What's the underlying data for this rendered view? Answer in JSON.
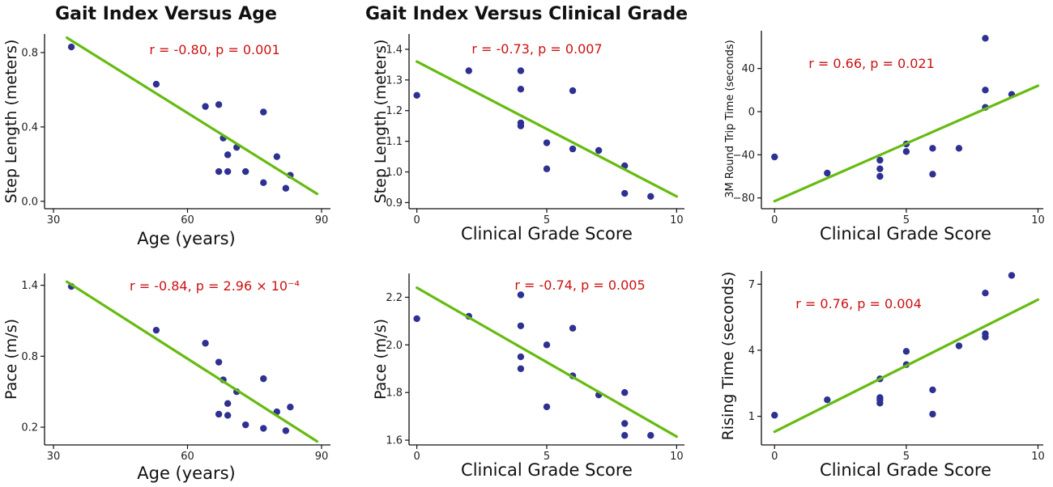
{
  "headings": {
    "left": "Gait Index Versus Age",
    "middle": "Gait Index Versus Clinical Grade"
  },
  "colors": {
    "point": "#2e3192",
    "fit": "#66bb11",
    "annotation": "#cc1111",
    "axis": "#111111"
  },
  "chart_data": [
    {
      "type": "scatter",
      "xlabel": "Age (years)",
      "ylabel": "Step Length (meters)",
      "xlim": [
        28,
        92
      ],
      "ylim": [
        -0.04,
        0.9
      ],
      "xticks": [
        30,
        60,
        90
      ],
      "xtick_labels": [
        "30",
        "60",
        "90"
      ],
      "yticks": [
        0.0,
        0.4,
        0.8
      ],
      "ytick_labels": [
        "0.0",
        "0.4",
        "0.8"
      ],
      "annotation": "r = -0.80, p = 0.001",
      "points": [
        [
          34,
          0.83
        ],
        [
          53,
          0.63
        ],
        [
          64,
          0.51
        ],
        [
          67,
          0.52
        ],
        [
          68,
          0.34
        ],
        [
          69,
          0.25
        ],
        [
          71,
          0.29
        ],
        [
          67,
          0.16
        ],
        [
          69,
          0.16
        ],
        [
          73,
          0.16
        ],
        [
          77,
          0.48
        ],
        [
          80,
          0.24
        ],
        [
          77,
          0.1
        ],
        [
          82,
          0.07
        ],
        [
          83,
          0.14
        ]
      ],
      "fit": [
        [
          33,
          0.88
        ],
        [
          89,
          0.04
        ]
      ]
    },
    {
      "type": "scatter",
      "xlabel": "Clinical Grade Score",
      "ylabel": "Step Length (meters)",
      "xlim": [
        -0.3,
        10.3
      ],
      "ylim": [
        0.88,
        1.45
      ],
      "xticks": [
        0,
        5,
        10
      ],
      "xtick_labels": [
        "0",
        "5",
        "10"
      ],
      "yticks": [
        0.9,
        1.0,
        1.1,
        1.2,
        1.3,
        1.4
      ],
      "ytick_labels": [
        "0.9",
        "1.0",
        "1.1",
        "1.2",
        "1.3",
        "1.4"
      ],
      "annotation": "r = -0.73, p = 0.007",
      "points": [
        [
          0,
          1.25
        ],
        [
          2,
          1.33
        ],
        [
          4,
          1.33
        ],
        [
          4,
          1.27
        ],
        [
          4,
          1.16
        ],
        [
          4,
          1.15
        ],
        [
          5,
          1.095
        ],
        [
          5,
          1.01
        ],
        [
          6,
          1.265
        ],
        [
          6,
          1.075
        ],
        [
          7,
          1.07
        ],
        [
          8,
          1.02
        ],
        [
          8,
          0.93
        ],
        [
          9,
          0.92
        ]
      ],
      "fit": [
        [
          0,
          1.36
        ],
        [
          10,
          0.92
        ]
      ]
    },
    {
      "type": "scatter",
      "xlabel": "Clinical Grade Score",
      "ylabel": "3M Round Trip Time (seconds)",
      "xlim": [
        -0.5,
        10.2
      ],
      "ylim": [
        -90,
        75
      ],
      "xticks": [
        0,
        5,
        10
      ],
      "xtick_labels": [
        "0",
        "5",
        "10"
      ],
      "yticks": [
        -80,
        -40,
        0,
        40
      ],
      "ytick_labels": [
        "−80",
        "−40",
        "0",
        "40"
      ],
      "annotation": "r = 0.66, p = 0.021",
      "points": [
        [
          0,
          -42
        ],
        [
          2,
          -57
        ],
        [
          4,
          -45
        ],
        [
          4,
          -53
        ],
        [
          4,
          -60
        ],
        [
          5,
          -30
        ],
        [
          5,
          -37
        ],
        [
          6,
          -34
        ],
        [
          6,
          -58
        ],
        [
          7,
          -34
        ],
        [
          8,
          68
        ],
        [
          8,
          20
        ],
        [
          8,
          4
        ],
        [
          9,
          16
        ]
      ],
      "fit": [
        [
          0,
          -83
        ],
        [
          10,
          24
        ]
      ]
    },
    {
      "type": "scatter",
      "xlabel": "Age (years)",
      "ylabel": "Pace (m/s)",
      "xlim": [
        28,
        92
      ],
      "ylim": [
        0.05,
        1.5
      ],
      "xticks": [
        30,
        60,
        90
      ],
      "xtick_labels": [
        "30",
        "60",
        "90"
      ],
      "yticks": [
        0.2,
        0.8,
        1.4
      ],
      "ytick_labels": [
        "0.2",
        "0.8",
        "1.4"
      ],
      "annotation": "r = -0.84, p = 2.96 × 10⁻⁴",
      "points": [
        [
          34,
          1.39
        ],
        [
          53,
          1.02
        ],
        [
          64,
          0.91
        ],
        [
          67,
          0.75
        ],
        [
          68,
          0.6
        ],
        [
          71,
          0.5
        ],
        [
          69,
          0.4
        ],
        [
          67,
          0.31
        ],
        [
          69,
          0.3
        ],
        [
          73,
          0.22
        ],
        [
          77,
          0.61
        ],
        [
          80,
          0.33
        ],
        [
          77,
          0.19
        ],
        [
          82,
          0.17
        ],
        [
          83,
          0.37
        ]
      ],
      "fit": [
        [
          33,
          1.43
        ],
        [
          89,
          0.08
        ]
      ]
    },
    {
      "type": "scatter",
      "xlabel": "Clinical Grade Score",
      "ylabel": "Pace (m/s)",
      "xlim": [
        -0.3,
        10.3
      ],
      "ylim": [
        1.58,
        2.3
      ],
      "xticks": [
        0,
        5,
        10
      ],
      "xtick_labels": [
        "0",
        "5",
        "10"
      ],
      "yticks": [
        1.6,
        1.8,
        2.0,
        2.2
      ],
      "ytick_labels": [
        "1.6",
        "1.8",
        "2.0",
        "2.2"
      ],
      "annotation": "r = -0.74, p = 0.005",
      "points": [
        [
          0,
          2.11
        ],
        [
          2,
          2.12
        ],
        [
          4,
          2.21
        ],
        [
          4,
          2.08
        ],
        [
          4,
          1.95
        ],
        [
          4,
          1.9
        ],
        [
          5,
          2.0
        ],
        [
          5,
          1.74
        ],
        [
          6,
          2.07
        ],
        [
          6,
          1.87
        ],
        [
          7,
          1.79
        ],
        [
          8,
          1.8
        ],
        [
          8,
          1.67
        ],
        [
          8,
          1.62
        ],
        [
          9,
          1.62
        ]
      ],
      "fit": [
        [
          0,
          2.24
        ],
        [
          10,
          1.615
        ]
      ]
    },
    {
      "type": "scatter",
      "xlabel": "Clinical Grade Score",
      "ylabel": "Rising Time (seconds)",
      "xlim": [
        -0.5,
        10.2
      ],
      "ylim": [
        -0.3,
        7.6
      ],
      "xticks": [
        0,
        5,
        10
      ],
      "xtick_labels": [
        "0",
        "5",
        "10"
      ],
      "yticks": [
        1,
        4,
        7
      ],
      "ytick_labels": [
        "1",
        "4",
        "7"
      ],
      "annotation": "r = 0.76, p = 0.004",
      "points": [
        [
          0,
          1.05
        ],
        [
          2,
          1.75
        ],
        [
          4,
          2.7
        ],
        [
          4,
          1.85
        ],
        [
          4,
          1.75
        ],
        [
          4,
          1.6
        ],
        [
          5,
          3.95
        ],
        [
          5,
          3.35
        ],
        [
          6,
          2.2
        ],
        [
          6,
          1.1
        ],
        [
          7,
          4.2
        ],
        [
          8,
          6.6
        ],
        [
          8,
          4.75
        ],
        [
          8,
          4.6
        ],
        [
          9,
          7.4
        ]
      ],
      "fit": [
        [
          0,
          0.3
        ],
        [
          10,
          6.3
        ]
      ]
    }
  ]
}
